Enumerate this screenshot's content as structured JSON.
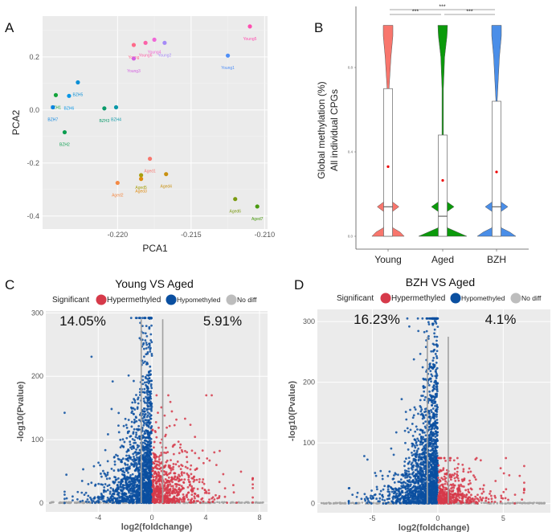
{
  "panels": {
    "a": "A",
    "b": "B",
    "c": "C",
    "d": "D"
  },
  "chart_data": [
    {
      "type": "scatter",
      "panel": "A",
      "xlabel": "PCA1",
      "ylabel": "PCA2",
      "xlim": [
        -0.2251,
        -0.2098
      ],
      "ylim": [
        -0.449,
        0.354
      ],
      "xticks": [
        -0.22,
        -0.215,
        -0.21
      ],
      "xtick_labels": [
        "-0.220",
        "-0.215",
        "-0.210"
      ],
      "yticks": [
        -0.4,
        -0.2,
        0.0,
        0.2
      ],
      "ytick_labels": [
        "-0.4",
        "-0.2",
        "0.0",
        "0.2"
      ],
      "grid": true,
      "background": "#ebebeb",
      "points": [
        {
          "label": "Young5",
          "x": -0.211,
          "y": 0.315,
          "color": "#ff4fb0"
        },
        {
          "label": "Young1",
          "x": -0.2125,
          "y": 0.205,
          "color": "#4f8ff7"
        },
        {
          "label": "Young",
          "x": -0.2189,
          "y": 0.245,
          "color": "#ff6a8a"
        },
        {
          "label": "Young6",
          "x": -0.2181,
          "y": 0.253,
          "color": "#fb61a8"
        },
        {
          "label": "Young4",
          "x": -0.2175,
          "y": 0.265,
          "color": "#f067d8"
        },
        {
          "label": "Young2",
          "x": -0.2168,
          "y": 0.253,
          "color": "#a58af7"
        },
        {
          "label": "Young3",
          "x": -0.2189,
          "y": 0.194,
          "color": "#d45fe0"
        },
        {
          "label": "BZH5",
          "x": -0.2227,
          "y": 0.104,
          "color": "#0a8fd6"
        },
        {
          "label": "BZH6",
          "x": -0.2233,
          "y": 0.053,
          "color": "#0996e6"
        },
        {
          "label": "BZH1",
          "x": -0.2242,
          "y": 0.056,
          "color": "#12a33a"
        },
        {
          "label": "BZH7",
          "x": -0.2244,
          "y": 0.01,
          "color": "#0a84e0"
        },
        {
          "label": "BZH3",
          "x": -0.2209,
          "y": 0.006,
          "color": "#0a9a6a"
        },
        {
          "label": "BZH4",
          "x": -0.2201,
          "y": 0.01,
          "color": "#0a98a8"
        },
        {
          "label": "BZH2",
          "x": -0.2236,
          "y": -0.084,
          "color": "#0b9e50"
        },
        {
          "label": "Aged1",
          "x": -0.2178,
          "y": -0.184,
          "color": "#f8766d"
        },
        {
          "label": "Aged2",
          "x": -0.22,
          "y": -0.275,
          "color": "#f48a45"
        },
        {
          "label": "Aged5",
          "x": -0.2184,
          "y": -0.246,
          "color": "#a8a010"
        },
        {
          "label": "Aged3",
          "x": -0.2184,
          "y": -0.26,
          "color": "#e08a10"
        },
        {
          "label": "Aged4",
          "x": -0.2167,
          "y": -0.242,
          "color": "#c89010"
        },
        {
          "label": "Aged6",
          "x": -0.212,
          "y": -0.336,
          "color": "#7a9a10"
        },
        {
          "label": "Aged7",
          "x": -0.2105,
          "y": -0.364,
          "color": "#4a9a10"
        }
      ]
    },
    {
      "type": "violin",
      "panel": "B",
      "ylabel_line1": "Global methylation (%)",
      "ylabel_line2": "All individual CPGs",
      "ylim": [
        0,
        1
      ],
      "yticks": [
        0.0,
        0.4,
        0.8
      ],
      "ytick_labels": [
        "0.0",
        "0.4",
        "0.8"
      ],
      "categories": [
        "Young",
        "Aged",
        "BZH"
      ],
      "significance": [
        {
          "from": "Young",
          "to": "BZH",
          "label": "***"
        },
        {
          "from": "Young",
          "to": "Aged",
          "label": "***"
        },
        {
          "from": "Aged",
          "to": "BZH",
          "label": "***"
        }
      ],
      "groups": [
        {
          "name": "Young",
          "color": "#f8766d",
          "box_low": 0.0,
          "box_high": 0.7,
          "median": 0.14,
          "mean": 0.33,
          "density": [
            [
              0,
              0.67
            ],
            [
              0.02,
              0.5
            ],
            [
              0.04,
              0.2
            ],
            [
              0.07,
              0.07
            ],
            [
              0.11,
              0.1
            ],
            [
              0.14,
              0.45
            ],
            [
              0.17,
              0.1
            ],
            [
              0.2,
              0.05
            ],
            [
              0.5,
              0.03
            ],
            [
              0.7,
              0.04
            ],
            [
              0.85,
              0.12
            ],
            [
              0.95,
              0.2
            ],
            [
              1,
              0.2
            ]
          ]
        },
        {
          "name": "Aged",
          "color": "#0b9a0b",
          "box_low": 0.0,
          "box_high": 0.48,
          "median": 0.095,
          "mean": 0.265,
          "density": [
            [
              0,
              1
            ],
            [
              0.02,
              0.6
            ],
            [
              0.04,
              0.2
            ],
            [
              0.07,
              0.07
            ],
            [
              0.11,
              0.1
            ],
            [
              0.14,
              0.47
            ],
            [
              0.17,
              0.1
            ],
            [
              0.2,
              0.04
            ],
            [
              0.5,
              0.03
            ],
            [
              0.7,
              0.03
            ],
            [
              0.85,
              0.08
            ],
            [
              0.95,
              0.18
            ],
            [
              1,
              0.2
            ]
          ]
        },
        {
          "name": "BZH",
          "color": "#4a8ee8",
          "box_low": 0.0,
          "box_high": 0.64,
          "median": 0.14,
          "mean": 0.305,
          "density": [
            [
              0,
              0.8
            ],
            [
              0.02,
              0.55
            ],
            [
              0.04,
              0.2
            ],
            [
              0.07,
              0.07
            ],
            [
              0.11,
              0.1
            ],
            [
              0.14,
              0.47
            ],
            [
              0.17,
              0.1
            ],
            [
              0.2,
              0.04
            ],
            [
              0.5,
              0.03
            ],
            [
              0.65,
              0.03
            ],
            [
              0.85,
              0.12
            ],
            [
              0.95,
              0.2
            ],
            [
              1,
              0.2
            ]
          ]
        }
      ]
    },
    {
      "type": "scatter",
      "panel": "C",
      "title": "Young VS Aged",
      "legend_title": "Significant",
      "legend": [
        {
          "name": "Hypermethyled",
          "color": "#d63a4a"
        },
        {
          "name": "Hypomethyled",
          "color": "#0a4fa0"
        },
        {
          "name": "No diff",
          "color": "#bdbdbd"
        }
      ],
      "pct_hypo": "14.05%",
      "pct_hyper": "5.91%",
      "xlabel": "log2(foldchange)",
      "ylabel": "-log10(Pvalue)",
      "xlim": [
        -7.9,
        8.6
      ],
      "ylim": [
        -14,
        303
      ],
      "xticks": [
        -4,
        0,
        4,
        8
      ],
      "xtick_labels": [
        "-4",
        "0",
        "4",
        "8"
      ],
      "yticks": [
        0,
        100,
        200,
        300
      ],
      "ytick_labels": [
        "0",
        "100",
        "200",
        "300"
      ],
      "thresholds": [
        -0.8,
        0.8
      ],
      "threshold_top": 290,
      "x_range_hypo": [
        -6.5,
        0
      ],
      "x_range_hyper": [
        0,
        7.5
      ],
      "max_y_hypo": 292,
      "max_y_hyper": 170
    },
    {
      "type": "scatter",
      "panel": "D",
      "title": "BZH VS Aged",
      "legend_title": "Significant",
      "legend": [
        {
          "name": "Hypermethyled",
          "color": "#d63a4a"
        },
        {
          "name": "Hypomethyled",
          "color": "#0a4fa0"
        },
        {
          "name": "No diff",
          "color": "#bdbdbd"
        }
      ],
      "pct_hypo": "16.23%",
      "pct_hyper": "4.1%",
      "xlabel": "log2(foldchange)",
      "ylabel": "-log10(Pvalue)",
      "xlim": [
        -9.2,
        8.6
      ],
      "ylim": [
        -15,
        320
      ],
      "xticks": [
        -5,
        0,
        5
      ],
      "xtick_labels": [
        "-5",
        "0",
        "5"
      ],
      "yticks": [
        0,
        100,
        200,
        300
      ],
      "ytick_labels": [
        "0",
        "100",
        "200",
        "300"
      ],
      "thresholds": [
        -0.8,
        0.8
      ],
      "threshold_top": 275,
      "x_range_hypo": [
        -6.8,
        0
      ],
      "x_range_hyper": [
        0,
        6.6
      ],
      "max_y_hypo": 305,
      "max_y_hyper": 75
    }
  ]
}
